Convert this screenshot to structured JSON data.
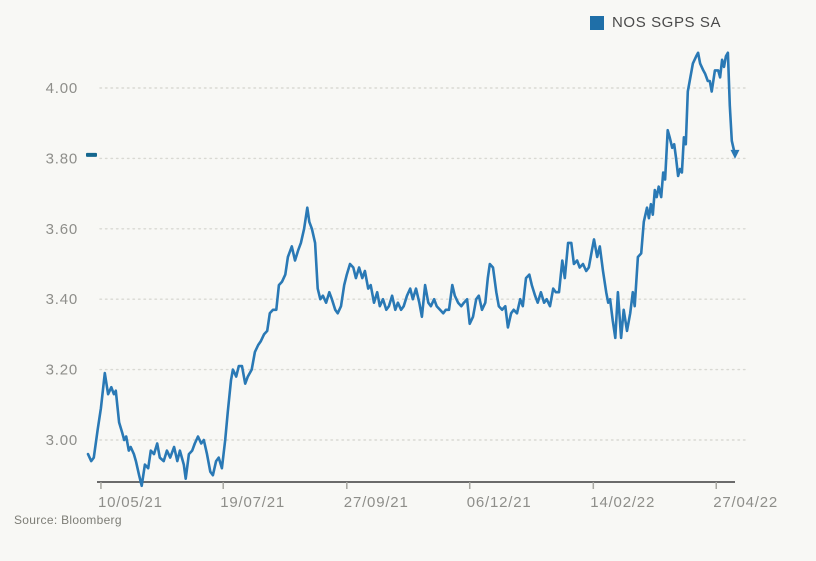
{
  "page": {
    "background": "#f8f8f5"
  },
  "legend": {
    "label": "NOS SGPS SA",
    "swatch_color": "#1f6fa8"
  },
  "source": "Source: Bloomberg",
  "chart_data": {
    "type": "line",
    "title": "",
    "series_name": "NOS SGPS SA",
    "line_color": "#2a79b5",
    "grid_color": "#d9d9d3",
    "axis_color": "#6b6b6b",
    "tick_color": "#a6a6a0",
    "label_color": "#8e8e8a",
    "grid": true,
    "legend_position": "top-right",
    "y_ticks": [
      "3.00",
      "3.20",
      "3.40",
      "3.60",
      "3.80",
      "4.00"
    ],
    "y_tick_values": [
      3.0,
      3.2,
      3.4,
      3.6,
      3.8,
      4.0
    ],
    "ylim": [
      2.88,
      4.14
    ],
    "x_ticks": [
      {
        "label": "10/05/21",
        "t": 0.02
      },
      {
        "label": "19/07/21",
        "t": 0.209
      },
      {
        "label": "27/09/21",
        "t": 0.4
      },
      {
        "label": "06/12/21",
        "t": 0.59
      },
      {
        "label": "14/02/22",
        "t": 0.781
      },
      {
        "label": "27/04/22",
        "t": 0.971
      }
    ],
    "last_price": 3.81,
    "last_price_color": "#16688f",
    "points": [
      [
        0.0,
        2.96
      ],
      [
        0.005,
        2.94
      ],
      [
        0.009,
        2.95
      ],
      [
        0.015,
        3.03
      ],
      [
        0.02,
        3.09
      ],
      [
        0.026,
        3.19
      ],
      [
        0.031,
        3.13
      ],
      [
        0.036,
        3.15
      ],
      [
        0.04,
        3.13
      ],
      [
        0.043,
        3.14
      ],
      [
        0.048,
        3.05
      ],
      [
        0.053,
        3.02
      ],
      [
        0.056,
        3.0
      ],
      [
        0.059,
        3.01
      ],
      [
        0.063,
        2.97
      ],
      [
        0.066,
        2.98
      ],
      [
        0.071,
        2.96
      ],
      [
        0.074,
        2.94
      ],
      [
        0.079,
        2.9
      ],
      [
        0.083,
        2.87
      ],
      [
        0.088,
        2.93
      ],
      [
        0.093,
        2.92
      ],
      [
        0.097,
        2.97
      ],
      [
        0.102,
        2.96
      ],
      [
        0.107,
        2.99
      ],
      [
        0.111,
        2.95
      ],
      [
        0.117,
        2.94
      ],
      [
        0.122,
        2.97
      ],
      [
        0.127,
        2.95
      ],
      [
        0.133,
        2.98
      ],
      [
        0.138,
        2.94
      ],
      [
        0.142,
        2.97
      ],
      [
        0.148,
        2.93
      ],
      [
        0.151,
        2.89
      ],
      [
        0.156,
        2.96
      ],
      [
        0.161,
        2.97
      ],
      [
        0.165,
        2.99
      ],
      [
        0.17,
        3.01
      ],
      [
        0.175,
        2.99
      ],
      [
        0.179,
        3.0
      ],
      [
        0.184,
        2.96
      ],
      [
        0.189,
        2.91
      ],
      [
        0.193,
        2.9
      ],
      [
        0.198,
        2.94
      ],
      [
        0.202,
        2.95
      ],
      [
        0.207,
        2.92
      ],
      [
        0.212,
        3.0
      ],
      [
        0.216,
        3.08
      ],
      [
        0.221,
        3.17
      ],
      [
        0.224,
        3.2
      ],
      [
        0.229,
        3.18
      ],
      [
        0.233,
        3.21
      ],
      [
        0.238,
        3.21
      ],
      [
        0.243,
        3.16
      ],
      [
        0.247,
        3.18
      ],
      [
        0.253,
        3.2
      ],
      [
        0.258,
        3.25
      ],
      [
        0.263,
        3.27
      ],
      [
        0.267,
        3.28
      ],
      [
        0.272,
        3.3
      ],
      [
        0.277,
        3.31
      ],
      [
        0.281,
        3.36
      ],
      [
        0.286,
        3.37
      ],
      [
        0.291,
        3.37
      ],
      [
        0.295,
        3.44
      ],
      [
        0.3,
        3.45
      ],
      [
        0.305,
        3.47
      ],
      [
        0.309,
        3.52
      ],
      [
        0.315,
        3.55
      ],
      [
        0.32,
        3.51
      ],
      [
        0.325,
        3.54
      ],
      [
        0.329,
        3.56
      ],
      [
        0.334,
        3.6
      ],
      [
        0.339,
        3.66
      ],
      [
        0.342,
        3.62
      ],
      [
        0.346,
        3.6
      ],
      [
        0.351,
        3.56
      ],
      [
        0.355,
        3.43
      ],
      [
        0.359,
        3.4
      ],
      [
        0.363,
        3.41
      ],
      [
        0.368,
        3.39
      ],
      [
        0.373,
        3.42
      ],
      [
        0.377,
        3.4
      ],
      [
        0.382,
        3.37
      ],
      [
        0.386,
        3.36
      ],
      [
        0.391,
        3.38
      ],
      [
        0.396,
        3.44
      ],
      [
        0.4,
        3.47
      ],
      [
        0.405,
        3.5
      ],
      [
        0.41,
        3.49
      ],
      [
        0.414,
        3.46
      ],
      [
        0.419,
        3.49
      ],
      [
        0.424,
        3.46
      ],
      [
        0.428,
        3.48
      ],
      [
        0.433,
        3.43
      ],
      [
        0.437,
        3.44
      ],
      [
        0.442,
        3.39
      ],
      [
        0.447,
        3.42
      ],
      [
        0.451,
        3.38
      ],
      [
        0.456,
        3.4
      ],
      [
        0.461,
        3.37
      ],
      [
        0.465,
        3.38
      ],
      [
        0.47,
        3.41
      ],
      [
        0.475,
        3.37
      ],
      [
        0.479,
        3.39
      ],
      [
        0.484,
        3.37
      ],
      [
        0.488,
        3.38
      ],
      [
        0.493,
        3.41
      ],
      [
        0.498,
        3.43
      ],
      [
        0.502,
        3.4
      ],
      [
        0.507,
        3.43
      ],
      [
        0.512,
        3.39
      ],
      [
        0.516,
        3.35
      ],
      [
        0.521,
        3.44
      ],
      [
        0.526,
        3.39
      ],
      [
        0.53,
        3.38
      ],
      [
        0.535,
        3.4
      ],
      [
        0.539,
        3.38
      ],
      [
        0.544,
        3.37
      ],
      [
        0.549,
        3.36
      ],
      [
        0.553,
        3.37
      ],
      [
        0.558,
        3.37
      ],
      [
        0.563,
        3.44
      ],
      [
        0.567,
        3.41
      ],
      [
        0.572,
        3.39
      ],
      [
        0.577,
        3.38
      ],
      [
        0.581,
        3.39
      ],
      [
        0.586,
        3.4
      ],
      [
        0.59,
        3.33
      ],
      [
        0.595,
        3.35
      ],
      [
        0.6,
        3.4
      ],
      [
        0.604,
        3.41
      ],
      [
        0.609,
        3.37
      ],
      [
        0.614,
        3.39
      ],
      [
        0.618,
        3.46
      ],
      [
        0.621,
        3.5
      ],
      [
        0.626,
        3.49
      ],
      [
        0.631,
        3.42
      ],
      [
        0.635,
        3.38
      ],
      [
        0.64,
        3.37
      ],
      [
        0.645,
        3.38
      ],
      [
        0.649,
        3.32
      ],
      [
        0.654,
        3.36
      ],
      [
        0.658,
        3.37
      ],
      [
        0.663,
        3.36
      ],
      [
        0.668,
        3.4
      ],
      [
        0.672,
        3.38
      ],
      [
        0.677,
        3.46
      ],
      [
        0.682,
        3.47
      ],
      [
        0.686,
        3.44
      ],
      [
        0.691,
        3.41
      ],
      [
        0.695,
        3.39
      ],
      [
        0.7,
        3.42
      ],
      [
        0.705,
        3.39
      ],
      [
        0.709,
        3.4
      ],
      [
        0.714,
        3.38
      ],
      [
        0.719,
        3.43
      ],
      [
        0.723,
        3.42
      ],
      [
        0.728,
        3.42
      ],
      [
        0.733,
        3.51
      ],
      [
        0.737,
        3.46
      ],
      [
        0.742,
        3.56
      ],
      [
        0.747,
        3.56
      ],
      [
        0.751,
        3.5
      ],
      [
        0.756,
        3.51
      ],
      [
        0.76,
        3.49
      ],
      [
        0.765,
        3.5
      ],
      [
        0.77,
        3.48
      ],
      [
        0.774,
        3.49
      ],
      [
        0.779,
        3.54
      ],
      [
        0.782,
        3.57
      ],
      [
        0.787,
        3.52
      ],
      [
        0.791,
        3.55
      ],
      [
        0.796,
        3.48
      ],
      [
        0.801,
        3.42
      ],
      [
        0.804,
        3.39
      ],
      [
        0.807,
        3.4
      ],
      [
        0.811,
        3.34
      ],
      [
        0.815,
        3.29
      ],
      [
        0.819,
        3.42
      ],
      [
        0.824,
        3.29
      ],
      [
        0.828,
        3.37
      ],
      [
        0.833,
        3.31
      ],
      [
        0.838,
        3.36
      ],
      [
        0.842,
        3.42
      ],
      [
        0.845,
        3.38
      ],
      [
        0.85,
        3.52
      ],
      [
        0.855,
        3.53
      ],
      [
        0.859,
        3.62
      ],
      [
        0.864,
        3.66
      ],
      [
        0.867,
        3.63
      ],
      [
        0.87,
        3.67
      ],
      [
        0.873,
        3.64
      ],
      [
        0.876,
        3.71
      ],
      [
        0.879,
        3.69
      ],
      [
        0.882,
        3.72
      ],
      [
        0.886,
        3.69
      ],
      [
        0.889,
        3.76
      ],
      [
        0.892,
        3.74
      ],
      [
        0.896,
        3.88
      ],
      [
        0.899,
        3.86
      ],
      [
        0.903,
        3.83
      ],
      [
        0.906,
        3.84
      ],
      [
        0.909,
        3.8
      ],
      [
        0.912,
        3.75
      ],
      [
        0.915,
        3.77
      ],
      [
        0.918,
        3.76
      ],
      [
        0.921,
        3.86
      ],
      [
        0.924,
        3.84
      ],
      [
        0.927,
        3.99
      ],
      [
        0.93,
        4.02
      ],
      [
        0.935,
        4.07
      ],
      [
        0.94,
        4.09
      ],
      [
        0.943,
        4.1
      ],
      [
        0.946,
        4.07
      ],
      [
        0.951,
        4.05
      ],
      [
        0.954,
        4.04
      ],
      [
        0.958,
        4.02
      ],
      [
        0.961,
        4.02
      ],
      [
        0.964,
        3.99
      ],
      [
        0.969,
        4.05
      ],
      [
        0.974,
        4.05
      ],
      [
        0.977,
        4.03
      ],
      [
        0.98,
        4.08
      ],
      [
        0.983,
        4.06
      ],
      [
        0.986,
        4.09
      ],
      [
        0.989,
        4.1
      ],
      [
        0.992,
        3.95
      ],
      [
        0.995,
        3.85
      ],
      [
        1.0,
        3.81
      ]
    ]
  }
}
